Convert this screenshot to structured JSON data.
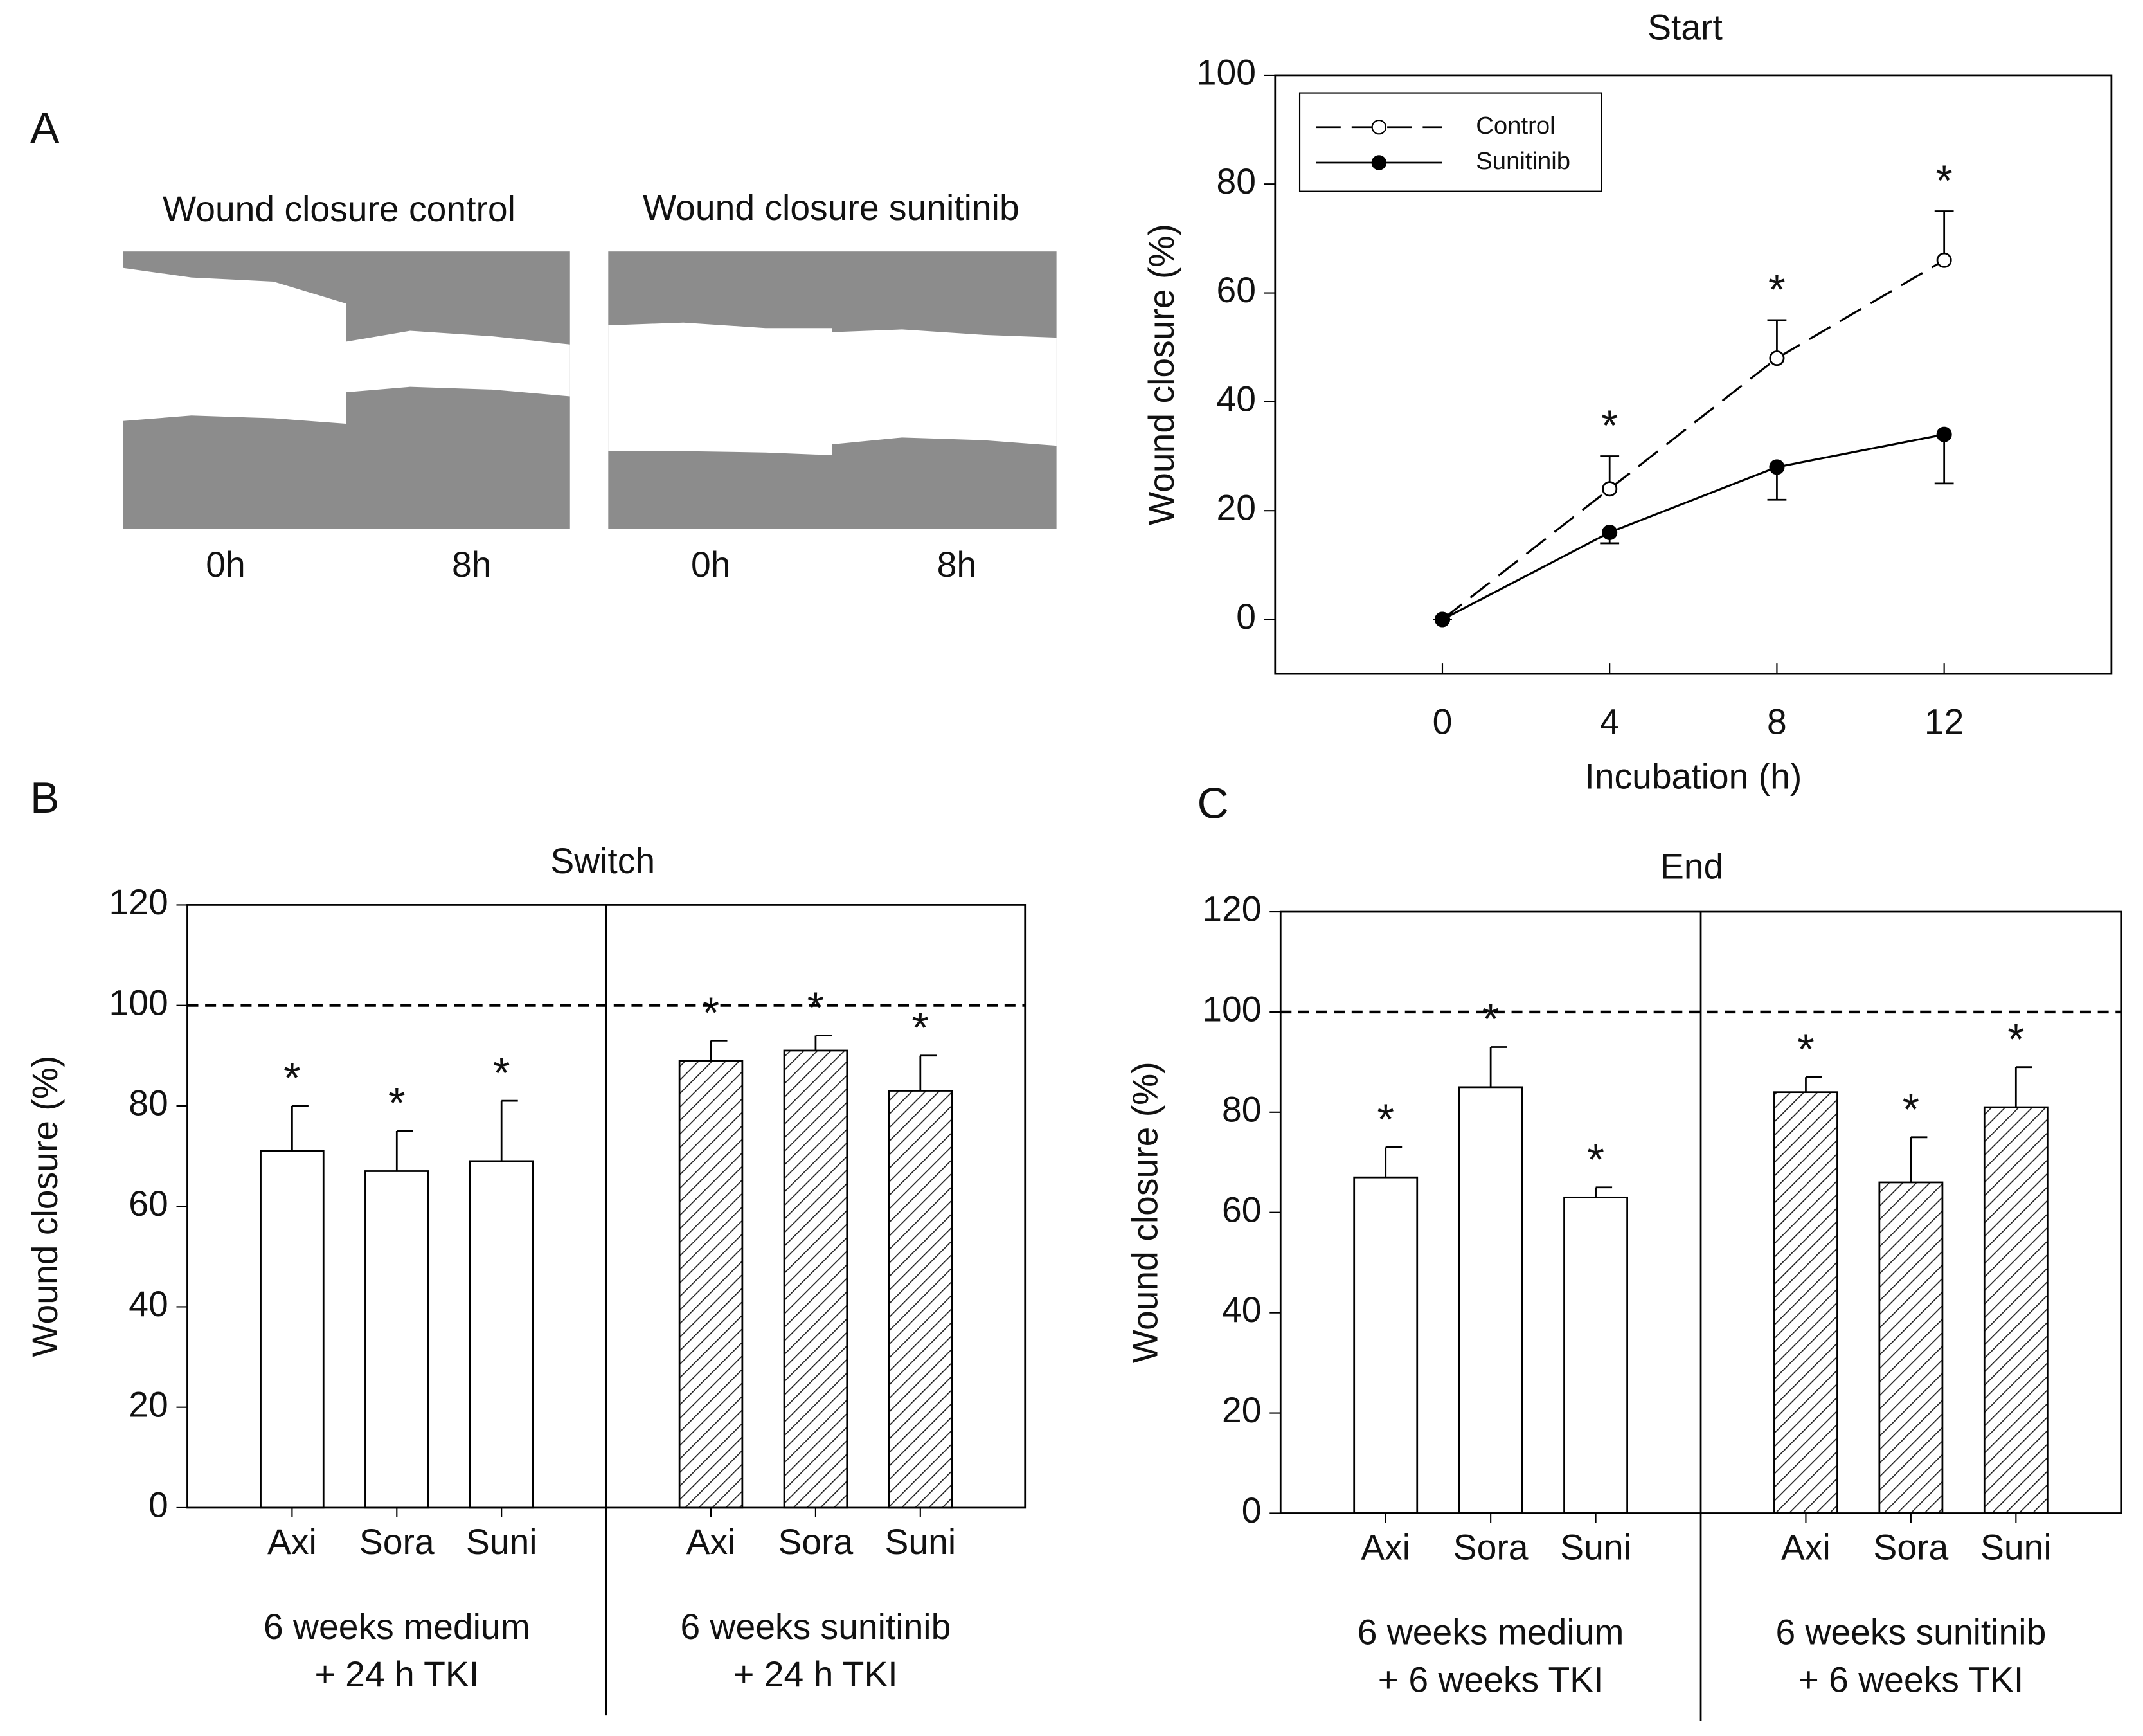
{
  "panels": {
    "labels": [
      "A",
      "B",
      "C"
    ],
    "images": [
      {
        "title": "Wound closure control",
        "times": [
          "0h",
          "8h"
        ]
      },
      {
        "title": "Wound closure sunitinib",
        "times": [
          "0h",
          "8h"
        ]
      }
    ]
  },
  "chart_data": [
    {
      "type": "line",
      "title": "Start",
      "xlabel": "Incubation (h)",
      "ylabel": "Wound closure (%)",
      "x": [
        0,
        4,
        8,
        12
      ],
      "xlim": [
        -4,
        16
      ],
      "xticks": [
        0,
        4,
        8,
        12
      ],
      "ylim": [
        -10,
        100
      ],
      "yticks": [
        0,
        20,
        40,
        60,
        80,
        100
      ],
      "legend": "top-left",
      "series": [
        {
          "name": "Control",
          "color": "#000000",
          "marker": "open",
          "dash": true,
          "values": [
            0,
            24,
            48,
            66
          ],
          "errors": [
            0,
            6,
            7,
            9
          ],
          "error_direction": "up",
          "annotations": [
            null,
            "*",
            "*",
            "*"
          ]
        },
        {
          "name": "Sunitinib",
          "color": "#000000",
          "marker": "filled",
          "dash": false,
          "values": [
            0,
            16,
            28,
            34
          ],
          "errors": [
            0,
            2,
            6,
            9
          ],
          "error_direction": "down"
        }
      ]
    },
    {
      "type": "bar",
      "title": "Switch",
      "ylabel": "Wound closure (%)",
      "ylim": [
        0,
        120
      ],
      "yticks": [
        0,
        20,
        40,
        60,
        80,
        100,
        120
      ],
      "reference_line": 100,
      "groups": [
        {
          "label_lines": [
            "6 weeks medium",
            "+ 24 h TKI"
          ],
          "categories": [
            "Axi",
            "Sora",
            "Suni"
          ],
          "values": [
            71,
            67,
            69
          ],
          "errors": [
            9,
            8,
            12
          ],
          "hatch": false,
          "annotations": [
            "*",
            "*",
            "*"
          ]
        },
        {
          "label_lines": [
            "6 weeks sunitinib",
            "+ 24 h TKI"
          ],
          "categories": [
            "Axi",
            "Sora",
            "Suni"
          ],
          "values": [
            89,
            91,
            83
          ],
          "errors": [
            4,
            3,
            7
          ],
          "hatch": true,
          "annotations": [
            "*",
            "*",
            "*"
          ]
        }
      ]
    },
    {
      "type": "bar",
      "title": "End",
      "ylabel": "Wound closure (%)",
      "ylim": [
        0,
        120
      ],
      "yticks": [
        0,
        20,
        40,
        60,
        80,
        100,
        120
      ],
      "reference_line": 100,
      "groups": [
        {
          "label_lines": [
            "6 weeks medium",
            "+ 6 weeks TKI"
          ],
          "categories": [
            "Axi",
            "Sora",
            "Suni"
          ],
          "values": [
            67,
            85,
            63
          ],
          "errors": [
            6,
            8,
            2
          ],
          "hatch": false,
          "annotations": [
            "*",
            "*",
            "*"
          ]
        },
        {
          "label_lines": [
            "6 weeks sunitinib",
            "+ 6 weeks TKI"
          ],
          "categories": [
            "Axi",
            "Sora",
            "Suni"
          ],
          "values": [
            84,
            66,
            81
          ],
          "errors": [
            3,
            9,
            8
          ],
          "hatch": true,
          "annotations": [
            "*",
            "*",
            "*"
          ]
        }
      ]
    }
  ]
}
